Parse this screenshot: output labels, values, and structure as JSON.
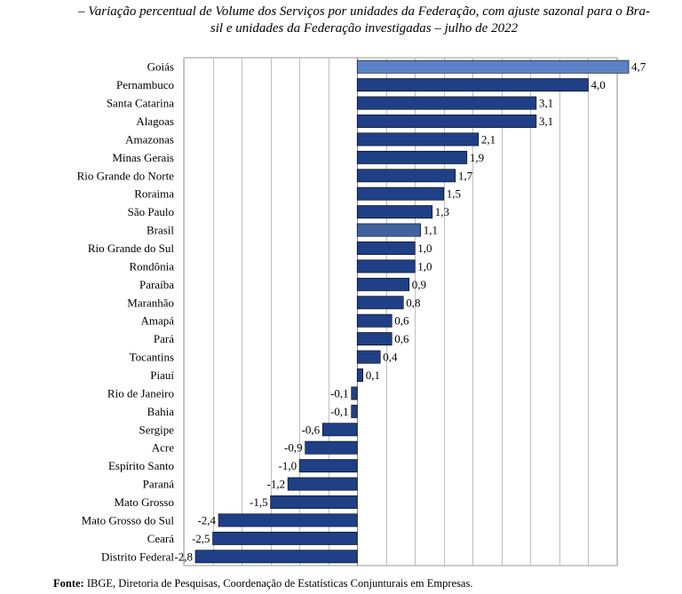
{
  "title_lines": [
    "– Variação percentual de Volume dos Serviços por unidades da Federação, com ajuste sazonal para o Bra-",
    "sil e unidades da Federação investigadas – julho de 2022"
  ],
  "source": {
    "label": "Fonte:",
    "text": " IBGE, Diretoria de Pesquisas, Coordenação de Estatísticas Conjunturais em Empresas."
  },
  "colors": {
    "bar": "#1F3F86",
    "goias_bar": "#5B82C8",
    "brasil_bar": "#40639F",
    "grid": "#BFBFBF",
    "bar_stroke": "#000000"
  },
  "chart_data": {
    "type": "bar",
    "orientation": "horizontal",
    "categories": [
      "Goiás",
      "Pernambuco",
      "Santa Catarina",
      "Alagoas",
      "Amazonas",
      "Minas Gerais",
      "Rio Grande do Norte",
      "Roraima",
      "São Paulo",
      "Brasil",
      "Rio Grande do Sul",
      "Rondônia",
      "Paraíba",
      "Maranhão",
      "Amapá",
      "Pará",
      "Tocantins",
      "Piauí",
      "Rio de Janeiro",
      "Bahia",
      "Sergipe",
      "Acre",
      "Espírito Santo",
      "Paraná",
      "Mato Grosso",
      "Mato Grosso do Sul",
      "Ceará",
      "Distrito Federal"
    ],
    "values": [
      4.7,
      4.0,
      3.1,
      3.1,
      2.1,
      1.9,
      1.7,
      1.5,
      1.3,
      1.1,
      1.0,
      1.0,
      0.9,
      0.8,
      0.6,
      0.6,
      0.4,
      0.1,
      -0.1,
      -0.1,
      -0.6,
      -0.9,
      -1.0,
      -1.2,
      -1.5,
      -2.4,
      -2.5,
      -2.8
    ],
    "data_labels": [
      "4,7",
      "4,0",
      "3,1",
      "3,1",
      "2,1",
      "1,9",
      "1,7",
      "1,5",
      "1,3",
      "1,1",
      "1,0",
      "1,0",
      "0,9",
      "0,8",
      "0,6",
      "0,6",
      "0,4",
      "0,1",
      "-0,1",
      "-0,1",
      "-0,6",
      "-0,9",
      "-1,0",
      "-1,2",
      "-1,5",
      "-2,4",
      "-2,5",
      "-2,8"
    ],
    "highlight": {
      "Goiás": "goias_bar",
      "Brasil": "brasil_bar"
    },
    "xlim": [
      -3.0,
      4.5
    ],
    "grid_step": 0.5,
    "grid": true,
    "legend": false
  }
}
